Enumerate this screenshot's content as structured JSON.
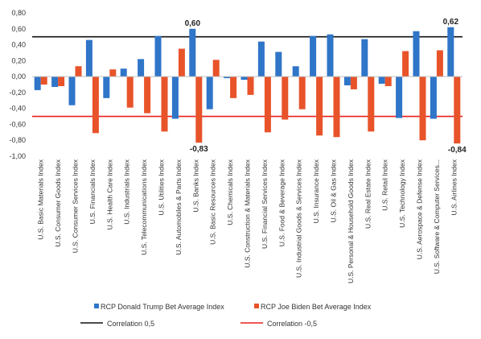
{
  "chart_data": {
    "type": "bar",
    "ylim": [
      -1.0,
      0.8
    ],
    "y_ticks": [
      "0,80",
      "0,60",
      "0,40",
      "0,20",
      "0,00",
      "-0,20",
      "-0,40",
      "-0,60",
      "-0,80",
      "-1,00"
    ],
    "grid": false,
    "legend_position": "bottom",
    "categories": [
      "U.S. Basic Materials Index",
      "U.S. Consumer Goods Index",
      "U.S. Consumer Services Index",
      "U.S. Financials Index",
      "U.S. Health Care Index",
      "U.S. Industrials Index",
      "U.S. Telecommunications Index",
      "U.S. Utilities Index",
      "U.S. Automobiles & Parts Index",
      "U.S. Banks Index",
      "U.S. Basic Resources Index",
      "U.S. Chemicals Index",
      "U.S. Construction & Materials Index",
      "U.S. Financial Services Index",
      "U.S. Food & Beverage Index",
      "U.S. Industrial Goods & Services Index",
      "U.S. Insurance Index",
      "U.S. Oil & Gas Index",
      "U.S. Personal & Household Goods Index",
      "U.S. Real Estate Index",
      "U.S. Retail Index",
      "U.S. Technology Index",
      "U.S. Aerospace & Defense Index",
      "U.S. Software & Computer Services...",
      "U.S. Airlines Index"
    ],
    "series": [
      {
        "name": "RCP Donald Trump Bet Average Index",
        "color": "#2f75c8",
        "values": [
          -0.17,
          -0.13,
          -0.36,
          0.46,
          -0.27,
          0.1,
          0.22,
          0.51,
          -0.53,
          0.6,
          -0.41,
          -0.02,
          -0.04,
          0.44,
          0.31,
          0.13,
          0.51,
          0.53,
          -0.11,
          0.47,
          -0.09,
          -0.52,
          0.57,
          -0.53,
          0.62
        ]
      },
      {
        "name": "RCP Joe Biden Bet Average Index",
        "color": "#e8532a",
        "values": [
          -0.1,
          -0.12,
          0.13,
          -0.71,
          0.09,
          -0.39,
          -0.46,
          -0.69,
          0.35,
          -0.83,
          0.21,
          -0.27,
          -0.23,
          -0.7,
          -0.54,
          -0.41,
          -0.74,
          -0.76,
          -0.16,
          -0.69,
          -0.12,
          0.32,
          -0.8,
          0.33,
          -0.84
        ]
      }
    ],
    "reference_lines": [
      {
        "name": "Correlation 0,5",
        "value": 0.5,
        "color": "#111111"
      },
      {
        "name": "Correlation -0,5",
        "value": -0.5,
        "color": "#e8201a"
      }
    ],
    "annotations": [
      {
        "text": "0,60",
        "category_index": 9,
        "series_index": 0
      },
      {
        "text": "-0,83",
        "category_index": 9,
        "series_index": 1
      },
      {
        "text": "0,62",
        "category_index": 24,
        "series_index": 0
      },
      {
        "text": "-0,84",
        "category_index": 24,
        "series_index": 1
      }
    ]
  }
}
